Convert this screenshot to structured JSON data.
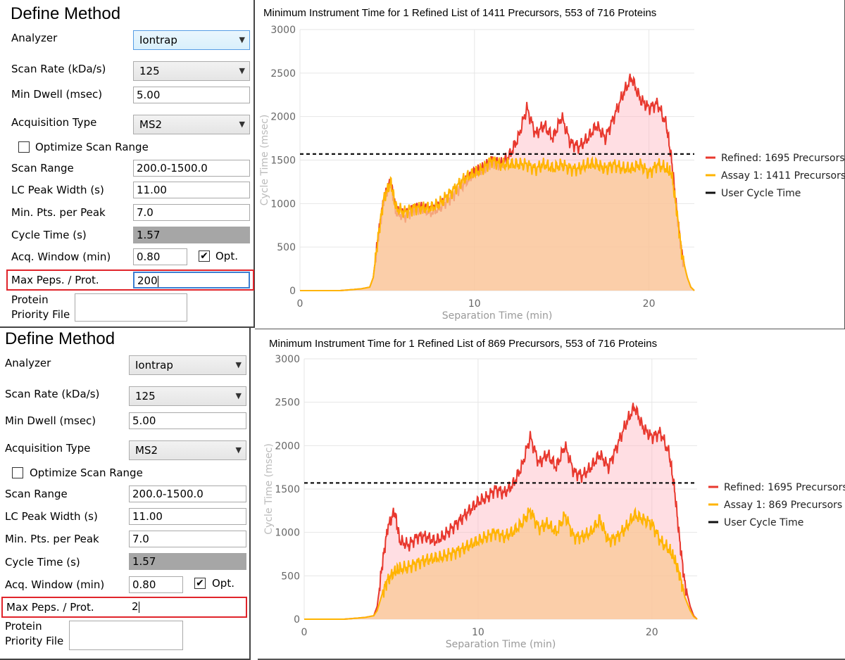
{
  "panels": [
    {
      "form": {
        "title": "Define Method",
        "analyzer_label": "Analyzer",
        "analyzer_value": "Iontrap",
        "scan_rate_label": "Scan Rate (kDa/s)",
        "scan_rate_value": "125",
        "min_dwell_label": "Min Dwell (msec)",
        "min_dwell_value": "5.00",
        "acq_type_label": "Acquisition Type",
        "acq_type_value": "MS2",
        "optimize_label": "Optimize Scan Range",
        "scan_range_label": "Scan Range",
        "scan_range_value": "200.0-1500.0",
        "lc_peak_label": "LC Peak Width (s)",
        "lc_peak_value": "11.00",
        "min_pts_label": "Min. Pts. per Peak",
        "min_pts_value": "7.0",
        "cycle_time_label": "Cycle Time (s)",
        "cycle_time_value": "1.57",
        "acq_window_label": "Acq. Window (min)",
        "acq_window_value": "0.80",
        "opt_label": "Opt.",
        "opt_check": "✔",
        "max_peps_label": "Max Peps. / Prot.",
        "max_peps_value": "200",
        "protein_label_1": "Protein",
        "protein_label_2": "Priority File"
      },
      "chart_data": {
        "type": "area",
        "title": "Minimum Instrument Time for 1 Refined List of 1411 Precursors, 553 of 716 Proteins",
        "xlabel": "Separation Time (min)",
        "ylabel": "Cycle Time (msec)",
        "xlim": [
          0,
          22.6
        ],
        "ylim": [
          0,
          3000
        ],
        "xticks": [
          "0",
          "10",
          "20"
        ],
        "yticks": [
          "0",
          "500",
          "1000",
          "1500",
          "2000",
          "2500",
          "3000"
        ],
        "user_cycle_time": 1570,
        "legend": [
          "Refined: 1695 Precursors",
          "Assay 1: 1411 Precursors",
          "User Cycle Time"
        ],
        "series": [
          {
            "name": "Refined: 1695 Precursors",
            "color": "#e8382e",
            "x": [
              0,
              2.3,
              3.5,
              4.0,
              4.2,
              4.5,
              4.8,
              5.2,
              5.5,
              6.0,
              6.5,
              7.0,
              7.5,
              8.0,
              8.5,
              9.0,
              9.5,
              10.0,
              10.5,
              11.0,
              11.5,
              12.0,
              12.5,
              13.0,
              13.5,
              14.0,
              14.5,
              15.0,
              15.5,
              16.0,
              16.5,
              17.0,
              17.5,
              18.0,
              18.5,
              19.0,
              19.5,
              20.0,
              20.5,
              21.0,
              21.3,
              21.6,
              21.9,
              22.2,
              22.4,
              22.6
            ],
            "y": [
              0,
              0,
              20,
              40,
              150,
              650,
              1050,
              1250,
              900,
              850,
              950,
              950,
              900,
              950,
              1050,
              1150,
              1250,
              1350,
              1400,
              1500,
              1450,
              1550,
              1750,
              2100,
              1800,
              1900,
              1750,
              2000,
              1700,
              1650,
              1750,
              1900,
              1750,
              2000,
              2250,
              2450,
              2200,
              2100,
              2150,
              1900,
              1500,
              900,
              400,
              150,
              40,
              0
            ]
          },
          {
            "name": "Assay 1: 1411 Precursors",
            "color": "#ffb400",
            "x": [
              0,
              2.3,
              3.5,
              4.0,
              4.2,
              4.5,
              4.8,
              5.2,
              5.5,
              6.0,
              6.5,
              7.0,
              7.5,
              8.0,
              8.5,
              9.0,
              9.5,
              10.0,
              10.5,
              11.0,
              11.5,
              12.0,
              12.5,
              13.0,
              13.5,
              14.0,
              14.5,
              15.0,
              15.5,
              16.0,
              16.5,
              17.0,
              17.5,
              18.0,
              18.5,
              19.0,
              19.5,
              20.0,
              20.5,
              21.0,
              21.3,
              21.6,
              21.9,
              22.2,
              22.4,
              22.6
            ],
            "y": [
              0,
              0,
              20,
              40,
              150,
              650,
              1050,
              1250,
              950,
              900,
              950,
              950,
              950,
              1000,
              1100,
              1200,
              1300,
              1350,
              1400,
              1500,
              1450,
              1450,
              1450,
              1450,
              1400,
              1450,
              1400,
              1450,
              1400,
              1400,
              1450,
              1450,
              1400,
              1450,
              1400,
              1400,
              1450,
              1350,
              1450,
              1400,
              1350,
              900,
              400,
              150,
              40,
              0
            ]
          }
        ]
      }
    },
    {
      "form": {
        "title": "Define Method",
        "analyzer_label": "Analyzer",
        "analyzer_value": "Iontrap",
        "scan_rate_label": "Scan Rate (kDa/s)",
        "scan_rate_value": "125",
        "min_dwell_label": "Min Dwell (msec)",
        "min_dwell_value": "5.00",
        "acq_type_label": "Acquisition Type",
        "acq_type_value": "MS2",
        "optimize_label": "Optimize Scan Range",
        "scan_range_label": "Scan Range",
        "scan_range_value": "200.0-1500.0",
        "lc_peak_label": "LC Peak Width (s)",
        "lc_peak_value": "11.00",
        "min_pts_label": "Min. Pts. per Peak",
        "min_pts_value": "7.0",
        "cycle_time_label": "Cycle Time (s)",
        "cycle_time_value": "1.57",
        "acq_window_label": "Acq. Window (min)",
        "acq_window_value": "0.80",
        "opt_label": "Opt.",
        "opt_check": "✔",
        "max_peps_label": "Max Peps. / Prot.",
        "max_peps_value": "2",
        "protein_label_1": "Protein",
        "protein_label_2": "Priority File"
      },
      "chart_data": {
        "type": "area",
        "title": "Minimum Instrument Time for 1 Refined List of 869 Precursors, 553 of 716 Proteins",
        "xlabel": "Separation Time (min)",
        "ylabel": "Cycle Time (msec)",
        "xlim": [
          0,
          22.6
        ],
        "ylim": [
          0,
          3000
        ],
        "xticks": [
          "0",
          "10",
          "20"
        ],
        "yticks": [
          "0",
          "500",
          "1000",
          "1500",
          "2000",
          "2500",
          "3000"
        ],
        "user_cycle_time": 1570,
        "legend": [
          "Refined: 1695 Precursors",
          "Assay 1: 869 Precursors",
          "User Cycle Time"
        ],
        "series": [
          {
            "name": "Refined: 1695 Precursors",
            "color": "#e8382e",
            "x": [
              0,
              2.3,
              3.5,
              4.0,
              4.2,
              4.5,
              4.8,
              5.2,
              5.5,
              6.0,
              6.5,
              7.0,
              7.5,
              8.0,
              8.5,
              9.0,
              9.5,
              10.0,
              10.5,
              11.0,
              11.5,
              12.0,
              12.5,
              13.0,
              13.5,
              14.0,
              14.5,
              15.0,
              15.5,
              16.0,
              16.5,
              17.0,
              17.5,
              18.0,
              18.5,
              19.0,
              19.5,
              20.0,
              20.5,
              21.0,
              21.3,
              21.6,
              21.9,
              22.2,
              22.4,
              22.6
            ],
            "y": [
              0,
              0,
              20,
              40,
              150,
              650,
              1050,
              1250,
              900,
              850,
              950,
              950,
              900,
              950,
              1050,
              1150,
              1250,
              1350,
              1400,
              1500,
              1450,
              1550,
              1750,
              2100,
              1800,
              1900,
              1750,
              2000,
              1700,
              1650,
              1750,
              1900,
              1750,
              2000,
              2250,
              2450,
              2200,
              2100,
              2150,
              1900,
              1500,
              900,
              400,
              150,
              40,
              0
            ]
          },
          {
            "name": "Assay 1: 869 Precursors",
            "color": "#ffb400",
            "x": [
              0,
              2.3,
              3.5,
              4.0,
              4.2,
              4.5,
              4.8,
              5.2,
              5.5,
              6.0,
              6.5,
              7.0,
              7.5,
              8.0,
              8.5,
              9.0,
              9.5,
              10.0,
              10.5,
              11.0,
              11.5,
              12.0,
              12.5,
              13.0,
              13.5,
              14.0,
              14.5,
              15.0,
              15.5,
              16.0,
              16.5,
              17.0,
              17.5,
              18.0,
              18.5,
              19.0,
              19.5,
              20.0,
              20.5,
              21.0,
              21.3,
              21.6,
              21.9,
              22.2,
              22.4,
              22.6
            ],
            "y": [
              0,
              0,
              20,
              40,
              100,
              300,
              450,
              550,
              580,
              600,
              650,
              680,
              700,
              720,
              760,
              800,
              850,
              900,
              950,
              1000,
              950,
              1000,
              1100,
              1250,
              1050,
              1100,
              1000,
              1200,
              950,
              950,
              1000,
              1150,
              900,
              950,
              1050,
              1200,
              1150,
              1100,
              900,
              800,
              700,
              500,
              250,
              100,
              30,
              0
            ]
          }
        ]
      }
    }
  ]
}
